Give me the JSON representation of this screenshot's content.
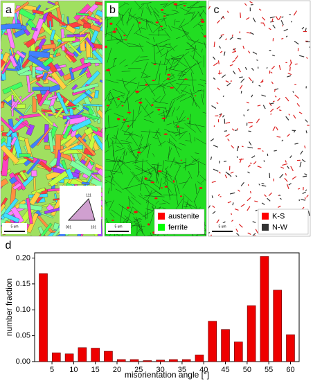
{
  "panels": [
    {
      "label": "a",
      "scale_bar": "5 um",
      "triangle_labels": [
        "111",
        "001",
        "101"
      ]
    },
    {
      "label": "b",
      "scale_bar": "5 um",
      "legend": [
        {
          "name": "austenite",
          "color": "#ff0000"
        },
        {
          "name": "ferrite",
          "color": "#00ff00"
        }
      ]
    },
    {
      "label": "c",
      "scale_bar": "5 um",
      "legend": [
        {
          "name": "K-S",
          "color": "#ff0000"
        },
        {
          "name": "N-W",
          "color": "#333333"
        }
      ]
    }
  ],
  "chart_data": {
    "type": "bar",
    "label": "d",
    "x": [
      3,
      6,
      9,
      12,
      15,
      18,
      21,
      24,
      27,
      30,
      33,
      36,
      39,
      42,
      45,
      48,
      51,
      54,
      57,
      60
    ],
    "values": [
      0.17,
      0.017,
      0.015,
      0.027,
      0.026,
      0.02,
      0.004,
      0.004,
      0.002,
      0.003,
      0.004,
      0.004,
      0.013,
      0.078,
      0.062,
      0.038,
      0.108,
      0.203,
      0.138,
      0.052
    ],
    "color": "#ee0000",
    "xlim": [
      1,
      62
    ],
    "xticks": [
      5,
      10,
      15,
      20,
      25,
      30,
      35,
      40,
      45,
      50,
      55,
      60
    ],
    "ylim": [
      0,
      0.21
    ],
    "yticks": [
      {
        "value": 0,
        "label": "0.00"
      },
      {
        "value": 0.05,
        "label": "0.05"
      },
      {
        "value": 0.1,
        "label": "0.10"
      },
      {
        "value": 0.15,
        "label": "0.15"
      },
      {
        "value": 0.2,
        "label": "0.20"
      }
    ],
    "xlabel": "misorientation angle [°]",
    "ylabel": "number fraction"
  }
}
